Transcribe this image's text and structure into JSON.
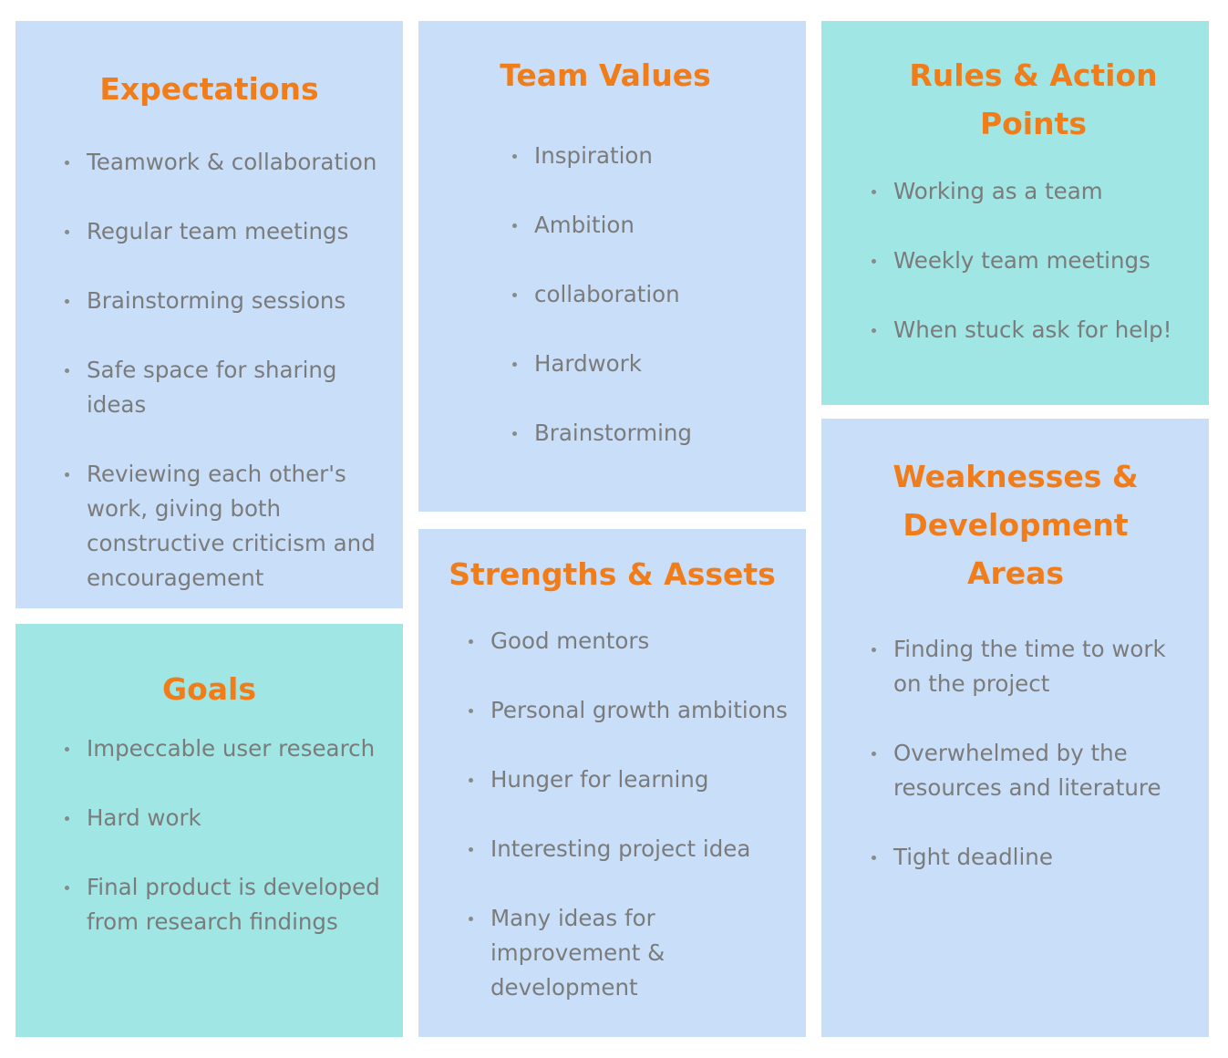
{
  "colors": {
    "heading": "#f07d1a",
    "bullet_text": "#7b7b7b",
    "blue_card": "#c9dff9",
    "teal_card": "#a0e6e5"
  },
  "expectations": {
    "title": "Expectations",
    "items": [
      "Teamwork & collaboration",
      "Regular team meetings",
      "Brainstorming sessions",
      "Safe space for sharing ideas",
      "Reviewing each other's work, giving both constructive criticism and encouragement"
    ]
  },
  "goals": {
    "title": "Goals",
    "items": [
      "Impeccable user research",
      "Hard work",
      "Final product is developed from research findings"
    ]
  },
  "team_values": {
    "title": "Team Values",
    "items": [
      "Inspiration",
      "Ambition",
      "collaboration",
      "Hardwork",
      "Brainstorming"
    ]
  },
  "strengths": {
    "title": "Strengths & Assets",
    "items": [
      "Good mentors",
      "Personal growth ambitions",
      "Hunger for learning",
      "Interesting project idea",
      "Many ideas for improvement & development"
    ]
  },
  "rules": {
    "title": "Rules & Action Points",
    "items": [
      "Working as a team",
      "Weekly team meetings",
      "When stuck ask for help!"
    ]
  },
  "weaknesses": {
    "title": "Weaknesses & Development Areas",
    "items": [
      "Finding the time to work on the project",
      "Overwhelmed by the resources and literature",
      "Tight deadline"
    ]
  }
}
